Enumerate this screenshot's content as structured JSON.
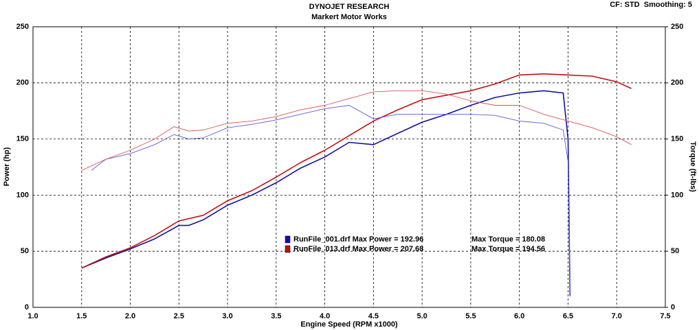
{
  "chart_data": {
    "type": "line",
    "title": "DYNOJET RESEARCH",
    "subtitle": "Markert Motor Works",
    "corner_note": "CF: STD  Smoothing: 5",
    "xlabel": "Engine Speed (RPM x1000)",
    "ylabel": "Power (hp)",
    "y2label": "Torque (ft-lbs)",
    "xlim": [
      1,
      7.5
    ],
    "xticks": [
      {
        "value": 1,
        "label": "1.0"
      },
      {
        "value": 1.5,
        "label": "1.5"
      },
      {
        "value": 2,
        "label": "2.0"
      },
      {
        "value": 2.5,
        "label": "2.5"
      },
      {
        "value": 3,
        "label": "3.0"
      },
      {
        "value": 3.5,
        "label": "3.5"
      },
      {
        "value": 4,
        "label": "4.0"
      },
      {
        "value": 4.5,
        "label": "4.5"
      },
      {
        "value": 5,
        "label": "5.0"
      },
      {
        "value": 5.5,
        "label": "5.5"
      },
      {
        "value": 6,
        "label": "6.0"
      },
      {
        "value": 6.5,
        "label": "6.5"
      },
      {
        "value": 7,
        "label": "7.0"
      },
      {
        "value": 7.5,
        "label": "7.5"
      }
    ],
    "ylim": [
      0,
      250
    ],
    "yticks": [
      0,
      50,
      100,
      150,
      200,
      250
    ],
    "y2lim": [
      0,
      250
    ],
    "y2ticks": [
      0,
      50,
      100,
      150,
      200,
      250
    ],
    "grid": true,
    "legend": [
      {
        "color": "#1010b0",
        "label": "RunFile_001.drf Max Power = 192.96",
        "torque": "Max Torque = 180.08"
      },
      {
        "color": "#c01010",
        "label": "RunFile_013.drf Max Power = 207.68",
        "torque": "Max Torque = 194.56"
      }
    ],
    "series": [
      {
        "color": "#1010a0",
        "width": 1.6,
        "x": [
          1.5,
          1.75,
          2,
          2.25,
          2.5,
          2.6,
          2.75,
          3,
          3.25,
          3.5,
          3.75,
          4,
          4.25,
          4.5,
          4.75,
          5,
          5.25,
          5.5,
          5.75,
          6,
          6.25,
          6.45,
          6.5,
          6.52
        ],
        "values": [
          35,
          44,
          52,
          61,
          73,
          73,
          78,
          91,
          100,
          111,
          124,
          134,
          147,
          145,
          155,
          165,
          172,
          180,
          187,
          191,
          193,
          191,
          150,
          10
        ]
      },
      {
        "color": "#c01010",
        "width": 1.6,
        "x": [
          1.5,
          1.75,
          2,
          2.25,
          2.5,
          2.75,
          3,
          3.25,
          3.5,
          3.75,
          4,
          4.25,
          4.5,
          4.75,
          5,
          5.25,
          5.5,
          5.75,
          6,
          6.25,
          6.5,
          6.75,
          7,
          7.15
        ],
        "values": [
          35,
          45,
          53,
          64,
          77,
          82,
          95,
          104,
          116,
          129,
          140,
          153,
          166,
          176,
          185,
          189,
          193,
          199,
          207,
          208,
          207,
          206,
          201,
          195
        ]
      },
      {
        "color": "#5a5ae0",
        "width": 0.9,
        "axis": "y2",
        "x": [
          1.6,
          1.75,
          2,
          2.25,
          2.45,
          2.6,
          2.75,
          3,
          3.25,
          3.5,
          3.75,
          4,
          4.25,
          4.5,
          4.75,
          5,
          5.25,
          5.5,
          5.75,
          6,
          6.25,
          6.45,
          6.5,
          6.52
        ],
        "values": [
          122,
          132,
          137,
          145,
          154,
          150,
          151,
          160,
          163,
          167,
          172,
          177,
          180,
          168,
          172,
          172,
          172,
          172,
          171,
          166,
          164,
          158,
          130,
          10
        ]
      },
      {
        "color": "#e05050",
        "width": 0.9,
        "axis": "y2",
        "x": [
          1.5,
          1.75,
          2,
          2.25,
          2.45,
          2.6,
          2.75,
          3,
          3.25,
          3.5,
          3.75,
          4,
          4.25,
          4.5,
          4.75,
          5,
          5.25,
          5.5,
          5.75,
          6,
          6.25,
          6.5,
          6.75,
          7,
          7.15
        ],
        "values": [
          122,
          132,
          140,
          150,
          161,
          157,
          158,
          164,
          166,
          170,
          176,
          180,
          186,
          192,
          193,
          193,
          190,
          184,
          180,
          180,
          172,
          166,
          160,
          152,
          145
        ]
      }
    ]
  }
}
